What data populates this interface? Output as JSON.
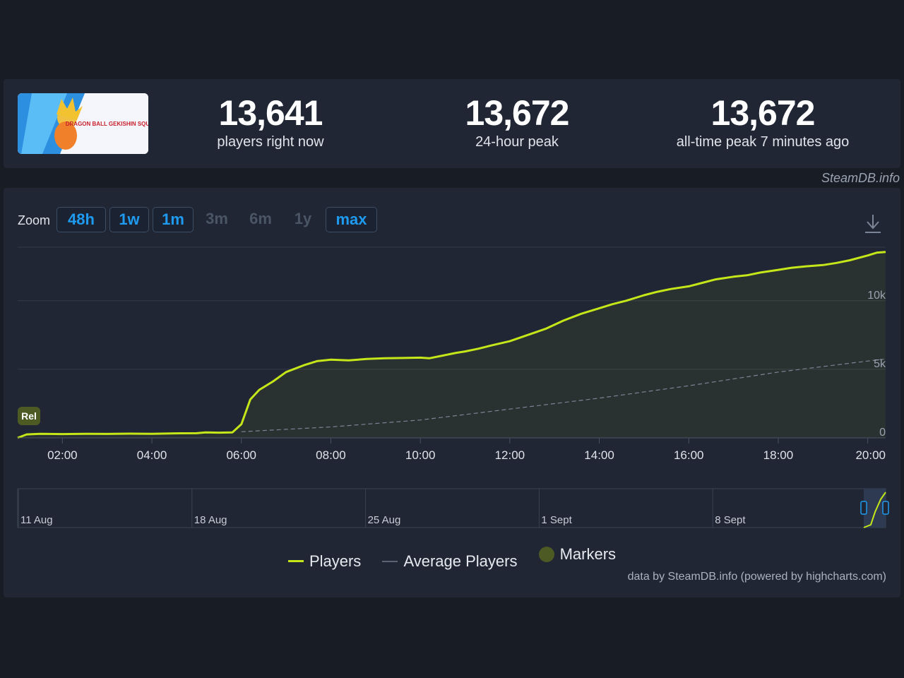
{
  "header": {
    "logo_text": "DRAGON BALL GEKISHIN SQUADRA",
    "stats": [
      {
        "value": "13,641",
        "label": "players right now"
      },
      {
        "value": "13,672",
        "label": "24-hour peak"
      },
      {
        "value": "13,672",
        "label": "all-time peak 7 minutes ago"
      }
    ],
    "credit": "SteamDB.info"
  },
  "toolbar": {
    "zoom_label": "Zoom",
    "zoom_buttons": [
      {
        "label": "48h",
        "state": "active"
      },
      {
        "label": "1w",
        "state": "active"
      },
      {
        "label": "1m",
        "state": "active"
      },
      {
        "label": "3m",
        "state": "disabled"
      },
      {
        "label": "6m",
        "state": "disabled"
      },
      {
        "label": "1y",
        "state": "disabled"
      },
      {
        "label": "max",
        "state": "selected"
      }
    ],
    "download_icon": "download-icon"
  },
  "chart_data": {
    "type": "line",
    "x_ticks": [
      "02:00",
      "04:00",
      "06:00",
      "08:00",
      "10:00",
      "12:00",
      "14:00",
      "16:00",
      "18:00",
      "20:00"
    ],
    "y_ticks": [
      "0",
      "5k",
      "10k"
    ],
    "ylim": [
      0,
      13900
    ],
    "xlim": [
      1.0,
      20.4
    ],
    "grid": true,
    "legend_placement": "bottom-center",
    "series": [
      {
        "name": "Players",
        "color": "#c5e619",
        "x": [
          1.0,
          1.2,
          1.5,
          2.0,
          2.5,
          3.0,
          3.5,
          4.0,
          4.5,
          5.0,
          5.2,
          5.5,
          5.8,
          6.0,
          6.2,
          6.4,
          6.7,
          7.0,
          7.4,
          7.7,
          8.0,
          8.4,
          8.8,
          9.2,
          9.6,
          10.0,
          10.2,
          10.5,
          10.8,
          11.0,
          11.3,
          11.6,
          12.0,
          12.4,
          12.8,
          13.2,
          13.6,
          14.0,
          14.3,
          14.6,
          15.0,
          15.3,
          15.6,
          16.0,
          16.3,
          16.6,
          17.0,
          17.3,
          17.6,
          18.0,
          18.3,
          18.6,
          19.0,
          19.3,
          19.6,
          20.0,
          20.2,
          20.4
        ],
        "y": [
          0,
          250,
          300,
          280,
          300,
          290,
          310,
          300,
          330,
          340,
          400,
          380,
          400,
          1000,
          2800,
          3500,
          4100,
          4800,
          5300,
          5600,
          5700,
          5650,
          5750,
          5800,
          5820,
          5850,
          5800,
          6000,
          6200,
          6300,
          6500,
          6750,
          7050,
          7500,
          7950,
          8550,
          9050,
          9450,
          9750,
          10000,
          10400,
          10650,
          10850,
          11050,
          11300,
          11550,
          11750,
          11850,
          12050,
          12250,
          12400,
          12500,
          12600,
          12750,
          12950,
          13300,
          13500,
          13550
        ]
      },
      {
        "name": "Average Players",
        "color": "#8a93a2",
        "x": [
          6.0,
          8.0,
          10.0,
          12.0,
          14.0,
          16.0,
          18.0,
          20.0,
          20.4
        ],
        "y": [
          450,
          800,
          1300,
          2100,
          2900,
          3800,
          4800,
          5600,
          5750
        ]
      }
    ],
    "markers": [
      {
        "label": "Rel",
        "x": 1.0
      }
    ],
    "navigator": {
      "date_labels": [
        "11 Aug",
        "18 Aug",
        "25 Aug",
        "1 Sept",
        "8 Sept"
      ]
    }
  },
  "legend": {
    "items": [
      {
        "label": "Players",
        "color": "#c5e619",
        "kind": "line"
      },
      {
        "label": "Average Players",
        "color": "#8a93a2",
        "kind": "line"
      },
      {
        "label": "Markers",
        "color": "#4d5a23",
        "kind": "dot"
      }
    ]
  },
  "footer": {
    "source": "data by SteamDB.info (powered by highcharts.com)"
  }
}
